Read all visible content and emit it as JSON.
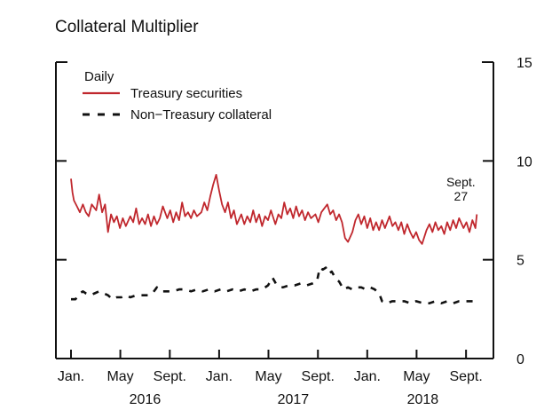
{
  "chart_data": {
    "type": "line",
    "title": "Collateral Multiplier",
    "legend_title": "Daily",
    "legend_position": "top-left",
    "y_axis": {
      "side": "right",
      "range": [
        0,
        15
      ],
      "ticks": [
        0,
        5,
        10,
        15
      ]
    },
    "x_axis": {
      "range": [
        2016.0,
        2018.75
      ],
      "month_ticks": [
        {
          "label": "Jan.",
          "x": 2016.0
        },
        {
          "label": "May",
          "x": 2016.333
        },
        {
          "label": "Sept.",
          "x": 2016.667
        },
        {
          "label": "Jan.",
          "x": 2017.0
        },
        {
          "label": "May",
          "x": 2017.333
        },
        {
          "label": "Sept.",
          "x": 2017.667
        },
        {
          "label": "Jan.",
          "x": 2018.0
        },
        {
          "label": "May",
          "x": 2018.333
        },
        {
          "label": "Sept.",
          "x": 2018.667
        }
      ],
      "year_labels": [
        {
          "label": "2016",
          "x": 2016.5
        },
        {
          "label": "2017",
          "x": 2017.5
        },
        {
          "label": "2018",
          "x": 2018.375
        }
      ]
    },
    "annotation": {
      "line1": "Sept.",
      "line2": "27",
      "x": 2018.74
    },
    "series": [
      {
        "name": "Treasury securities",
        "color": "#c0272d",
        "style": "solid",
        "points": [
          [
            2016.0,
            9.1
          ],
          [
            2016.01,
            8.4
          ],
          [
            2016.02,
            8.0
          ],
          [
            2016.04,
            7.7
          ],
          [
            2016.06,
            7.4
          ],
          [
            2016.08,
            7.8
          ],
          [
            2016.1,
            7.4
          ],
          [
            2016.12,
            7.2
          ],
          [
            2016.14,
            7.8
          ],
          [
            2016.17,
            7.5
          ],
          [
            2016.19,
            8.3
          ],
          [
            2016.21,
            7.4
          ],
          [
            2016.23,
            7.8
          ],
          [
            2016.25,
            6.4
          ],
          [
            2016.27,
            7.3
          ],
          [
            2016.29,
            6.9
          ],
          [
            2016.31,
            7.2
          ],
          [
            2016.33,
            6.6
          ],
          [
            2016.35,
            7.1
          ],
          [
            2016.37,
            6.7
          ],
          [
            2016.4,
            7.2
          ],
          [
            2016.42,
            6.9
          ],
          [
            2016.44,
            7.6
          ],
          [
            2016.46,
            6.8
          ],
          [
            2016.48,
            7.1
          ],
          [
            2016.5,
            6.8
          ],
          [
            2016.52,
            7.3
          ],
          [
            2016.54,
            6.7
          ],
          [
            2016.56,
            7.2
          ],
          [
            2016.58,
            6.8
          ],
          [
            2016.6,
            7.1
          ],
          [
            2016.62,
            7.7
          ],
          [
            2016.65,
            7.1
          ],
          [
            2016.67,
            7.5
          ],
          [
            2016.69,
            6.9
          ],
          [
            2016.71,
            7.4
          ],
          [
            2016.73,
            7.0
          ],
          [
            2016.75,
            7.9
          ],
          [
            2016.77,
            7.2
          ],
          [
            2016.79,
            7.4
          ],
          [
            2016.81,
            7.1
          ],
          [
            2016.83,
            7.5
          ],
          [
            2016.85,
            7.2
          ],
          [
            2016.88,
            7.4
          ],
          [
            2016.9,
            7.9
          ],
          [
            2016.92,
            7.5
          ],
          [
            2016.94,
            8.2
          ],
          [
            2016.96,
            8.8
          ],
          [
            2016.98,
            9.3
          ],
          [
            2017.0,
            8.5
          ],
          [
            2017.02,
            7.8
          ],
          [
            2017.04,
            7.4
          ],
          [
            2017.06,
            7.9
          ],
          [
            2017.08,
            7.1
          ],
          [
            2017.1,
            7.5
          ],
          [
            2017.12,
            6.8
          ],
          [
            2017.15,
            7.3
          ],
          [
            2017.17,
            6.8
          ],
          [
            2017.19,
            7.2
          ],
          [
            2017.21,
            6.9
          ],
          [
            2017.23,
            7.5
          ],
          [
            2017.25,
            6.9
          ],
          [
            2017.27,
            7.3
          ],
          [
            2017.29,
            6.7
          ],
          [
            2017.31,
            7.2
          ],
          [
            2017.33,
            7.0
          ],
          [
            2017.35,
            7.5
          ],
          [
            2017.38,
            6.8
          ],
          [
            2017.4,
            7.3
          ],
          [
            2017.42,
            7.1
          ],
          [
            2017.44,
            7.9
          ],
          [
            2017.46,
            7.3
          ],
          [
            2017.48,
            7.6
          ],
          [
            2017.5,
            7.1
          ],
          [
            2017.52,
            7.7
          ],
          [
            2017.54,
            7.2
          ],
          [
            2017.56,
            7.5
          ],
          [
            2017.58,
            7.0
          ],
          [
            2017.6,
            7.4
          ],
          [
            2017.62,
            7.1
          ],
          [
            2017.65,
            7.3
          ],
          [
            2017.67,
            6.9
          ],
          [
            2017.69,
            7.4
          ],
          [
            2017.71,
            7.6
          ],
          [
            2017.73,
            7.8
          ],
          [
            2017.75,
            7.3
          ],
          [
            2017.77,
            7.5
          ],
          [
            2017.79,
            7.0
          ],
          [
            2017.81,
            7.3
          ],
          [
            2017.83,
            6.9
          ],
          [
            2017.85,
            6.1
          ],
          [
            2017.87,
            5.9
          ],
          [
            2017.9,
            6.4
          ],
          [
            2017.92,
            7.0
          ],
          [
            2017.94,
            7.3
          ],
          [
            2017.96,
            6.8
          ],
          [
            2017.98,
            7.2
          ],
          [
            2018.0,
            6.6
          ],
          [
            2018.02,
            7.1
          ],
          [
            2018.04,
            6.5
          ],
          [
            2018.06,
            6.9
          ],
          [
            2018.08,
            6.5
          ],
          [
            2018.1,
            7.0
          ],
          [
            2018.12,
            6.6
          ],
          [
            2018.15,
            7.2
          ],
          [
            2018.17,
            6.7
          ],
          [
            2018.19,
            6.9
          ],
          [
            2018.21,
            6.5
          ],
          [
            2018.23,
            6.9
          ],
          [
            2018.25,
            6.3
          ],
          [
            2018.27,
            6.8
          ],
          [
            2018.29,
            6.4
          ],
          [
            2018.31,
            6.1
          ],
          [
            2018.33,
            6.4
          ],
          [
            2018.35,
            6.0
          ],
          [
            2018.37,
            5.8
          ],
          [
            2018.4,
            6.5
          ],
          [
            2018.42,
            6.8
          ],
          [
            2018.44,
            6.4
          ],
          [
            2018.46,
            6.9
          ],
          [
            2018.48,
            6.5
          ],
          [
            2018.5,
            6.7
          ],
          [
            2018.52,
            6.3
          ],
          [
            2018.54,
            6.9
          ],
          [
            2018.56,
            6.5
          ],
          [
            2018.58,
            7.0
          ],
          [
            2018.6,
            6.6
          ],
          [
            2018.62,
            7.1
          ],
          [
            2018.65,
            6.6
          ],
          [
            2018.67,
            6.9
          ],
          [
            2018.69,
            6.4
          ],
          [
            2018.71,
            7.0
          ],
          [
            2018.73,
            6.6
          ],
          [
            2018.74,
            7.3
          ]
        ]
      },
      {
        "name": "Non−Treasury collateral",
        "color": "#111111",
        "style": "dashed",
        "points": [
          [
            2016.0,
            3.0
          ],
          [
            2016.03,
            3.0
          ],
          [
            2016.06,
            3.3
          ],
          [
            2016.08,
            3.4
          ],
          [
            2016.1,
            3.3
          ],
          [
            2016.13,
            3.2
          ],
          [
            2016.16,
            3.3
          ],
          [
            2016.19,
            3.4
          ],
          [
            2016.22,
            3.3
          ],
          [
            2016.25,
            3.2
          ],
          [
            2016.28,
            3.0
          ],
          [
            2016.31,
            3.1
          ],
          [
            2016.34,
            3.1
          ],
          [
            2016.37,
            3.2
          ],
          [
            2016.4,
            3.1
          ],
          [
            2016.44,
            3.2
          ],
          [
            2016.48,
            3.2
          ],
          [
            2016.52,
            3.2
          ],
          [
            2016.55,
            3.3
          ],
          [
            2016.58,
            3.6
          ],
          [
            2016.61,
            3.4
          ],
          [
            2016.65,
            3.4
          ],
          [
            2016.69,
            3.4
          ],
          [
            2016.73,
            3.5
          ],
          [
            2016.77,
            3.5
          ],
          [
            2016.81,
            3.4
          ],
          [
            2016.85,
            3.5
          ],
          [
            2016.89,
            3.4
          ],
          [
            2016.93,
            3.5
          ],
          [
            2016.97,
            3.4
          ],
          [
            2017.01,
            3.5
          ],
          [
            2017.05,
            3.4
          ],
          [
            2017.09,
            3.5
          ],
          [
            2017.13,
            3.4
          ],
          [
            2017.17,
            3.5
          ],
          [
            2017.21,
            3.4
          ],
          [
            2017.25,
            3.5
          ],
          [
            2017.29,
            3.5
          ],
          [
            2017.33,
            3.7
          ],
          [
            2017.36,
            4.1
          ],
          [
            2017.39,
            3.7
          ],
          [
            2017.43,
            3.6
          ],
          [
            2017.47,
            3.7
          ],
          [
            2017.51,
            3.7
          ],
          [
            2017.55,
            3.8
          ],
          [
            2017.59,
            3.7
          ],
          [
            2017.63,
            3.8
          ],
          [
            2017.66,
            3.9
          ],
          [
            2017.68,
            4.6
          ],
          [
            2017.7,
            4.5
          ],
          [
            2017.72,
            4.6
          ],
          [
            2017.74,
            4.3
          ],
          [
            2017.76,
            4.4
          ],
          [
            2017.79,
            4.0
          ],
          [
            2017.81,
            3.9
          ],
          [
            2017.84,
            3.5
          ],
          [
            2017.87,
            3.6
          ],
          [
            2017.9,
            3.5
          ],
          [
            2017.93,
            3.6
          ],
          [
            2017.96,
            3.6
          ],
          [
            2017.99,
            3.5
          ],
          [
            2018.02,
            3.6
          ],
          [
            2018.05,
            3.5
          ],
          [
            2018.08,
            3.3
          ],
          [
            2018.1,
            2.9
          ],
          [
            2018.13,
            2.8
          ],
          [
            2018.17,
            2.9
          ],
          [
            2018.21,
            2.9
          ],
          [
            2018.25,
            2.9
          ],
          [
            2018.29,
            2.8
          ],
          [
            2018.33,
            2.9
          ],
          [
            2018.38,
            2.8
          ],
          [
            2018.42,
            2.8
          ],
          [
            2018.46,
            2.9
          ],
          [
            2018.5,
            2.8
          ],
          [
            2018.54,
            2.9
          ],
          [
            2018.58,
            2.8
          ],
          [
            2018.62,
            2.9
          ],
          [
            2018.66,
            2.9
          ],
          [
            2018.7,
            2.9
          ],
          [
            2018.74,
            2.9
          ]
        ]
      }
    ]
  }
}
